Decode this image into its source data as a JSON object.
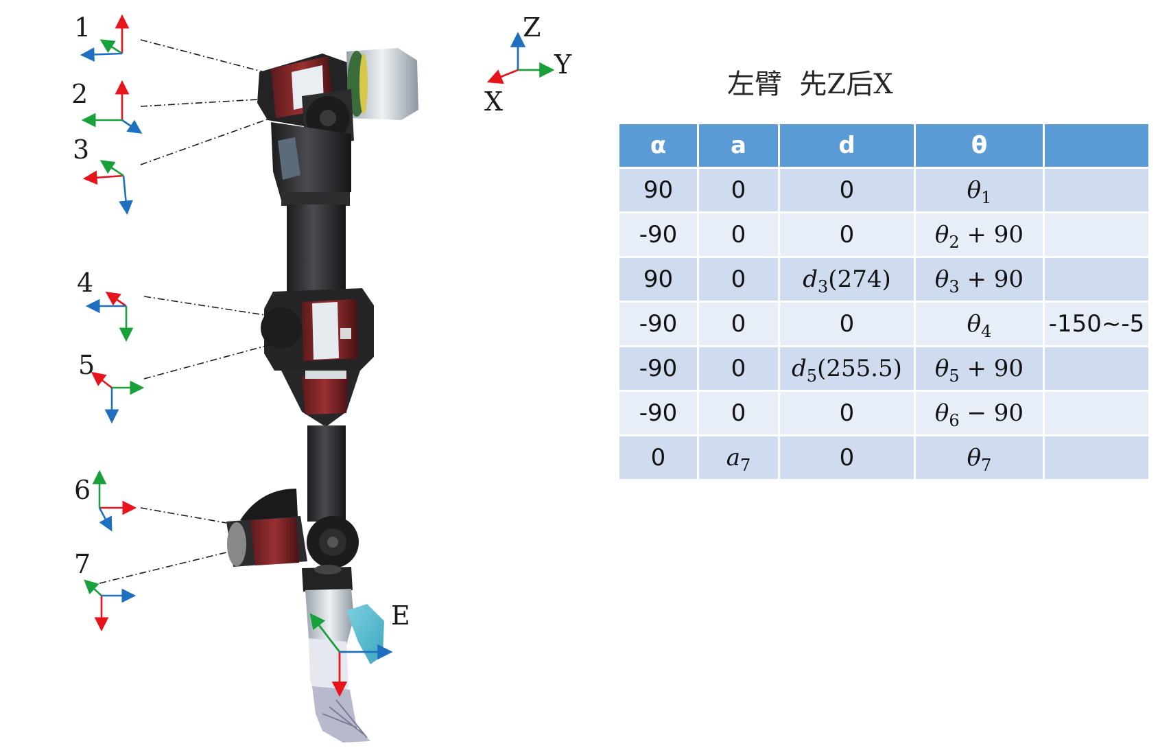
{
  "title": "左臂  先Z后X",
  "frame_labels": [
    "1",
    "2",
    "3",
    "4",
    "5",
    "6",
    "7",
    "E"
  ],
  "world_axes": {
    "z": "Z",
    "y": "Y",
    "x": "X"
  },
  "axis_colors": {
    "red": "#e8141c",
    "green": "#18a13a",
    "blue": "#1f6fc0"
  },
  "table": {
    "headers": [
      "α",
      "a",
      "d",
      "θ",
      ""
    ],
    "rows": [
      {
        "alpha": "90",
        "a": {
          "text": "0"
        },
        "d": {
          "text": "0"
        },
        "theta": {
          "var": "θ",
          "sub": "1",
          "op": ""
        },
        "range": ""
      },
      {
        "alpha": "-90",
        "a": {
          "text": "0"
        },
        "d": {
          "text": "0"
        },
        "theta": {
          "var": "θ",
          "sub": "2",
          "op": " + 90"
        },
        "range": ""
      },
      {
        "alpha": "90",
        "a": {
          "text": "0"
        },
        "d": {
          "var": "d",
          "sub": "3",
          "rest": "(274)"
        },
        "theta": {
          "var": "θ",
          "sub": "3",
          "op": " + 90"
        },
        "range": ""
      },
      {
        "alpha": "-90",
        "a": {
          "text": "0"
        },
        "d": {
          "text": "0"
        },
        "theta": {
          "var": "θ",
          "sub": "4",
          "op": ""
        },
        "range": "-150~-5"
      },
      {
        "alpha": "-90",
        "a": {
          "text": "0"
        },
        "d": {
          "var": "d",
          "sub": "5",
          "rest": "(255.5)"
        },
        "theta": {
          "var": "θ",
          "sub": "5",
          "op": " + 90"
        },
        "range": ""
      },
      {
        "alpha": "-90",
        "a": {
          "text": "0"
        },
        "d": {
          "text": "0"
        },
        "theta": {
          "var": "θ",
          "sub": "6",
          "op": " − 90"
        },
        "range": ""
      },
      {
        "alpha": "0",
        "a": {
          "var": "a",
          "sub": "7"
        },
        "d": {
          "text": "0"
        },
        "theta": {
          "var": "θ",
          "sub": "7",
          "op": ""
        },
        "range": ""
      }
    ]
  }
}
